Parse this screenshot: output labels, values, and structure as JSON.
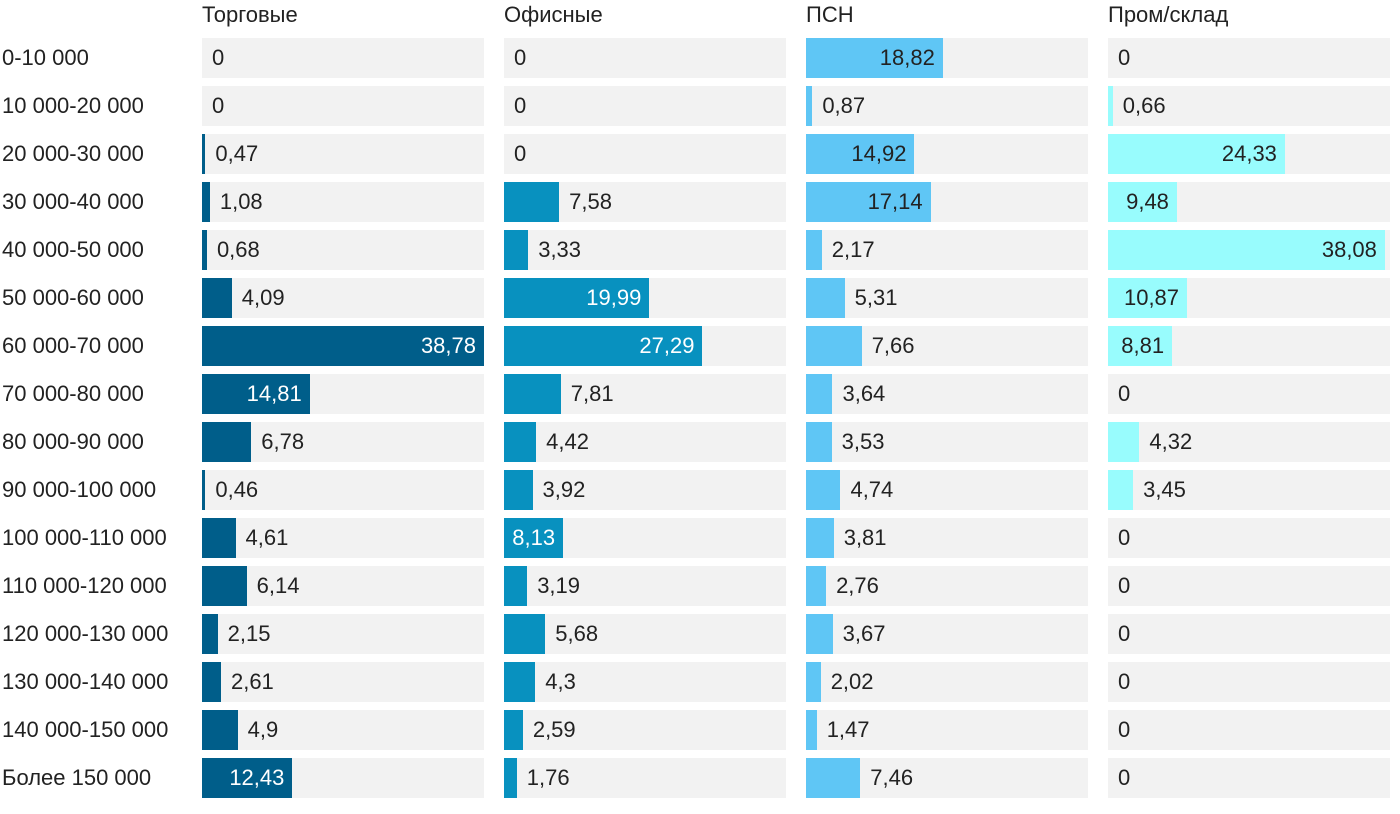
{
  "chart_data": {
    "type": "bar",
    "orientation": "horizontal",
    "layout": "small-multiples",
    "categories": [
      "0-10 000",
      "10 000-20 000",
      "20 000-30 000",
      "30 000-40 000",
      "40 000-50 000",
      "50 000-60 000",
      "60 000-70 000",
      "70 000-80 000",
      "80 000-90 000",
      "90 000-100 000",
      "100 000-110 000",
      "110 000-120 000",
      "120 000-130 000",
      "130 000-140 000",
      "140 000-150 000",
      "Более 150 000"
    ],
    "series": [
      {
        "name": "Торговые",
        "color": "#005e8a",
        "label_inside_color": "#ffffff",
        "labels": [
          "0",
          "0",
          "0,47",
          "1,08",
          "0,68",
          "4,09",
          "38,78",
          "14,81",
          "6,78",
          "0,46",
          "4,61",
          "6,14",
          "2,15",
          "2,61",
          "4,9",
          "12,43"
        ],
        "values": [
          0,
          0,
          0.47,
          1.08,
          0.68,
          4.09,
          38.78,
          14.81,
          6.78,
          0.46,
          4.61,
          6.14,
          2.15,
          2.61,
          4.9,
          12.43
        ]
      },
      {
        "name": "Офисные",
        "color": "#0891bf",
        "label_inside_color": "#ffffff",
        "labels": [
          "0",
          "0",
          "0",
          "7,58",
          "3,33",
          "19,99",
          "27,29",
          "7,81",
          "4,42",
          "3,92",
          "8,13",
          "3,19",
          "5,68",
          "4,3",
          "2,59",
          "1,76"
        ],
        "values": [
          0,
          0,
          0,
          7.58,
          3.33,
          19.99,
          27.29,
          7.81,
          4.42,
          3.92,
          8.13,
          3.19,
          5.68,
          4.3,
          2.59,
          1.76
        ]
      },
      {
        "name": "ПСН",
        "color": "#5fc6f5",
        "label_inside_color": "#222222",
        "labels": [
          "18,82",
          "0,87",
          "14,92",
          "17,14",
          "2,17",
          "5,31",
          "7,66",
          "3,64",
          "3,53",
          "4,74",
          "3,81",
          "2,76",
          "3,67",
          "2,02",
          "1,47",
          "7,46"
        ],
        "values": [
          18.82,
          0.87,
          14.92,
          17.14,
          2.17,
          5.31,
          7.66,
          3.64,
          3.53,
          4.74,
          3.81,
          2.76,
          3.67,
          2.02,
          1.47,
          7.46
        ]
      },
      {
        "name": "Пром/склад",
        "color": "#98fcfd",
        "label_inside_color": "#222222",
        "labels": [
          "0",
          "0,66",
          "24,33",
          "9,48",
          "38,08",
          "10,87",
          "8,81",
          "0",
          "4,32",
          "3,45",
          "0",
          "0",
          "0",
          "0",
          "0",
          "0"
        ],
        "values": [
          0,
          0.66,
          24.33,
          9.48,
          38.08,
          10.87,
          8.81,
          0,
          4.32,
          3.45,
          0,
          0,
          0,
          0,
          0,
          0
        ]
      }
    ],
    "xlim": [
      0,
      38.78
    ],
    "title": "",
    "xlabel": "",
    "ylabel": ""
  }
}
